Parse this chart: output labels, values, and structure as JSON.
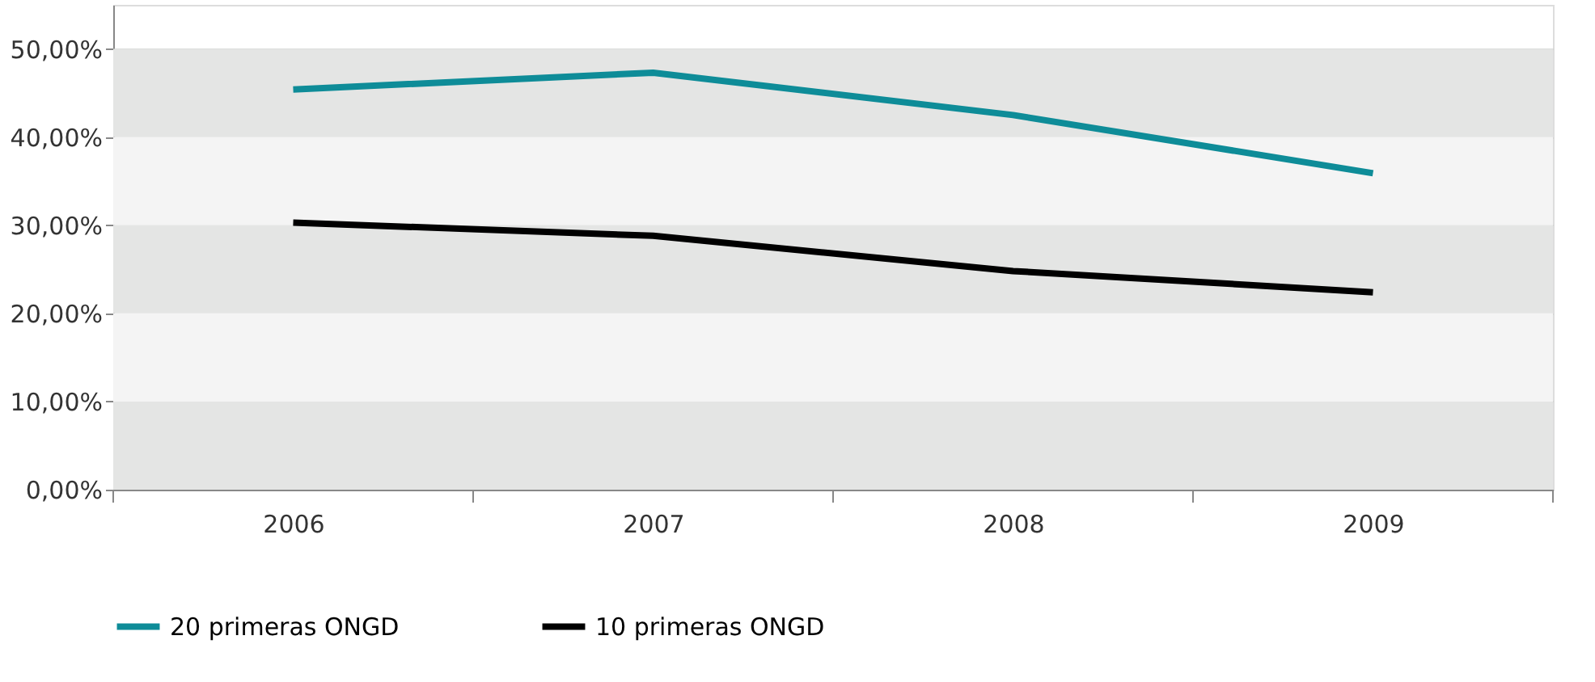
{
  "chart_data": {
    "type": "line",
    "categories": [
      "2006",
      "2007",
      "2008",
      "2009"
    ],
    "series": [
      {
        "name": "20 primeras ONGD",
        "color": "#0e8c98",
        "values": [
          45.4,
          47.3,
          42.5,
          35.9
        ]
      },
      {
        "name": "10 primeras ONGD",
        "color": "#000000",
        "values": [
          30.3,
          28.8,
          24.8,
          22.4
        ]
      }
    ],
    "ylim": [
      0,
      55
    ],
    "yticks": [
      {
        "value": 0,
        "label": "0,00%"
      },
      {
        "value": 10,
        "label": "10,00%"
      },
      {
        "value": 20,
        "label": "20,00%"
      },
      {
        "value": 30,
        "label": "30,00%"
      },
      {
        "value": 40,
        "label": "40,00%"
      },
      {
        "value": 50,
        "label": "50,00%"
      }
    ],
    "grid": "y",
    "legend": "bottom",
    "marker": "none",
    "line_style": "solid"
  }
}
